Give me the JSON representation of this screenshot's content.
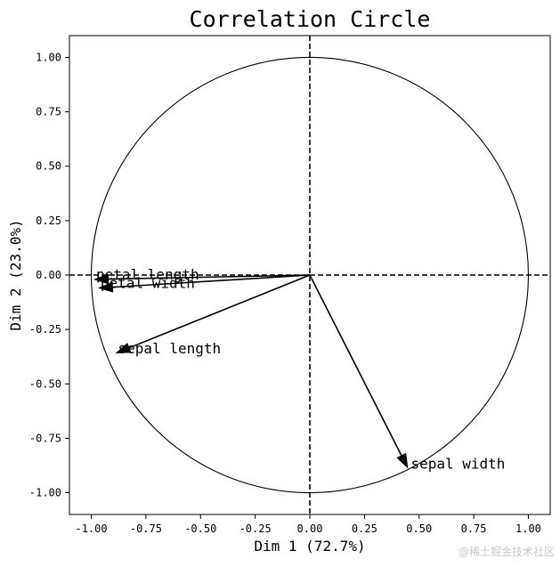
{
  "chart_data": {
    "type": "scatter",
    "title": "Correlation Circle",
    "xlabel": "Dim 1 (72.7%)",
    "ylabel": "Dim 2 (23.0%)",
    "xlim": [
      -1.1,
      1.1
    ],
    "ylim": [
      -1.1,
      1.1
    ],
    "xticks": [
      -1.0,
      -0.75,
      -0.5,
      -0.25,
      0.0,
      0.25,
      0.5,
      0.75,
      1.0
    ],
    "yticks": [
      -1.0,
      -0.75,
      -0.5,
      -0.25,
      0.0,
      0.25,
      0.5,
      0.75,
      1.0
    ],
    "xtick_labels": [
      "-1.00",
      "-0.75",
      "-0.50",
      "-0.25",
      "0.00",
      "0.25",
      "0.50",
      "0.75",
      "1.00"
    ],
    "ytick_labels": [
      "-1.00",
      "-0.75",
      "-0.50",
      "-0.25",
      "0.00",
      "0.25",
      "0.50",
      "0.75",
      "1.00"
    ],
    "unit_circle_radius": 1.0,
    "reference_lines": [
      "x = 0",
      "y = 0"
    ],
    "grid": false,
    "vectors": [
      {
        "name": "petal length",
        "x": -0.99,
        "y": -0.02
      },
      {
        "name": "petal width",
        "x": -0.97,
        "y": -0.06
      },
      {
        "name": "sepal length",
        "x": -0.89,
        "y": -0.36
      },
      {
        "name": "sepal width",
        "x": 0.45,
        "y": -0.89
      }
    ],
    "colors": {
      "arrow": "#000000",
      "circle": "#000000",
      "reference_line": "#000000"
    }
  },
  "watermark": "@稀土掘金技术社区"
}
